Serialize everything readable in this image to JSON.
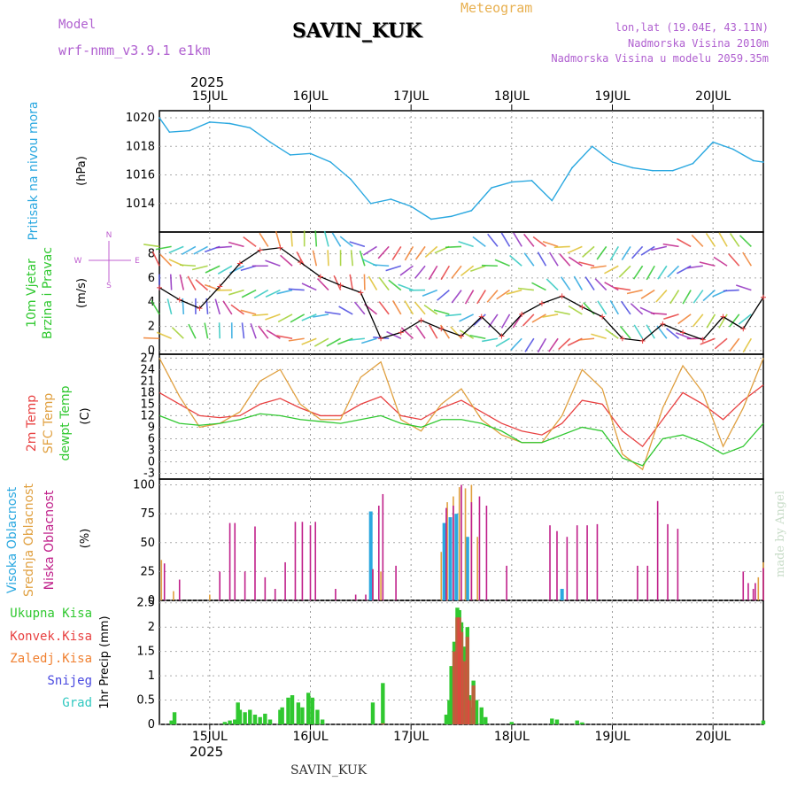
{
  "header": {
    "model_label": "Model",
    "model_name": "wrf-nmm_v3.9.1 e1km",
    "station": "SAVIN_KUK",
    "chart_title": "Meteogram",
    "location": "lon,lat (19.04E, 43.11N)",
    "elevation": "Nadmorska Visina 2010m",
    "model_elevation": "Nadmorska Visina u modelu 2059.35m"
  },
  "footer": {
    "station": "SAVIN_KUK",
    "watermark": "made by Angel"
  },
  "colors": {
    "pressure": "#2aa8e0",
    "temp2m": "#e84040",
    "sfc_temp": "#e0a040",
    "dewpt": "#30c830",
    "cloud_high": "#2aa8e0",
    "cloud_mid": "#e0a040",
    "cloud_low": "#c0208a",
    "precip_total": "#30c830",
    "precip_conv": "#e84040",
    "precip_frozen": "#f08030",
    "snow": "#4848e0",
    "hail": "#30c8c0",
    "wind_label": "#30c830",
    "compass": "#c060d0"
  },
  "chart_data": [
    {
      "type": "line",
      "panel": "pressure",
      "ylabel": [
        "Pritisak na nivou mora",
        "(hPa)"
      ],
      "ylim": [
        1012,
        1020.5
      ],
      "yticks": [
        1014,
        1016,
        1018,
        1020
      ],
      "x_days": [
        14.5,
        14.6,
        14.8,
        15.0,
        15.2,
        15.4,
        15.6,
        15.8,
        16.0,
        16.2,
        16.4,
        16.6,
        16.8,
        17.0,
        17.2,
        17.4,
        17.6,
        17.8,
        18.0,
        18.2,
        18.4,
        18.6,
        18.8,
        19.0,
        19.2,
        19.4,
        19.6,
        19.8,
        20.0,
        20.2,
        20.4,
        20.5
      ],
      "values": [
        1020.0,
        1019.0,
        1019.1,
        1019.7,
        1019.6,
        1019.3,
        1018.3,
        1017.4,
        1017.5,
        1016.9,
        1015.7,
        1014.0,
        1014.3,
        1013.8,
        1012.9,
        1013.1,
        1013.5,
        1015.1,
        1015.5,
        1015.6,
        1014.2,
        1016.5,
        1018.0,
        1016.9,
        1016.5,
        1016.3,
        1016.3,
        1016.8,
        1018.3,
        1017.8,
        1017.0,
        1016.9
      ]
    },
    {
      "type": "line",
      "panel": "wind",
      "ylabel": [
        "10m Vjetar",
        "Brzina i Pravac",
        "(m/s)"
      ],
      "compass": [
        "N",
        "S",
        "W",
        "E"
      ],
      "ylim": [
        -0.3,
        9.8
      ],
      "yticks": [
        0,
        2,
        4,
        6,
        8
      ],
      "x_days": [
        14.5,
        14.7,
        14.9,
        15.1,
        15.3,
        15.5,
        15.7,
        15.9,
        16.1,
        16.3,
        16.5,
        16.7,
        16.9,
        17.1,
        17.3,
        17.5,
        17.7,
        17.9,
        18.1,
        18.3,
        18.5,
        18.7,
        18.9,
        19.1,
        19.3,
        19.5,
        19.7,
        19.9,
        20.1,
        20.3,
        20.5
      ],
      "values": [
        5.2,
        4.2,
        3.5,
        5.3,
        7.2,
        8.3,
        8.5,
        7.3,
        6.1,
        5.4,
        4.8,
        1.0,
        1.5,
        2.5,
        1.8,
        1.2,
        2.8,
        1.2,
        3.0,
        3.9,
        4.5,
        3.6,
        2.8,
        1.0,
        0.8,
        2.2,
        1.5,
        0.9,
        2.8,
        1.8,
        4.4
      ]
    },
    {
      "type": "line",
      "panel": "temperature",
      "ylabel": [
        "2m Temp",
        "SFC Temp",
        "dewpt Temp",
        "(C)"
      ],
      "ylim": [
        -4.5,
        28
      ],
      "yticks": [
        -3,
        0,
        3,
        6,
        9,
        12,
        15,
        18,
        21,
        24,
        27
      ],
      "x_days": [
        14.5,
        14.7,
        14.9,
        15.1,
        15.3,
        15.5,
        15.7,
        15.9,
        16.1,
        16.3,
        16.5,
        16.7,
        16.9,
        17.1,
        17.3,
        17.5,
        17.7,
        17.9,
        18.1,
        18.3,
        18.5,
        18.7,
        18.9,
        19.1,
        19.3,
        19.5,
        19.7,
        19.9,
        20.1,
        20.3,
        20.5
      ],
      "series": [
        {
          "name": "2m Temp",
          "values": [
            18,
            15,
            12,
            11.5,
            12,
            15,
            16.5,
            14,
            12,
            12,
            15,
            17,
            12,
            11,
            14,
            16,
            13,
            10,
            8,
            7,
            10,
            16,
            15,
            8,
            4,
            11,
            18,
            15,
            11,
            16,
            20
          ]
        },
        {
          "name": "SFC Temp",
          "values": [
            27,
            17,
            9,
            10,
            13,
            21,
            24,
            15,
            11,
            11,
            22,
            26,
            11,
            8,
            15,
            19,
            11,
            7,
            5,
            5,
            12,
            24,
            19,
            2,
            -2,
            14,
            25,
            18,
            4,
            14,
            27
          ]
        },
        {
          "name": "dewpt Temp",
          "values": [
            12,
            10,
            9.5,
            10,
            11,
            12.5,
            12,
            11,
            10.5,
            10,
            11,
            12,
            10,
            9,
            11,
            11,
            10,
            8,
            5,
            5,
            7,
            9,
            8,
            1,
            -1,
            6,
            7,
            5,
            2,
            4,
            10
          ]
        }
      ]
    },
    {
      "type": "bar",
      "panel": "clouds",
      "ylabel": [
        "Visoka Oblacnost",
        "Srednja Oblacnost",
        "Niska Oblacnost",
        "(%)"
      ],
      "ylim": [
        0,
        105
      ],
      "yticks": [
        0,
        25,
        50,
        75,
        100
      ],
      "series": [
        {
          "name": "Visoka Oblacnost",
          "x_days": [
            16.6,
            17.33,
            17.39,
            17.45,
            17.56,
            18.5
          ],
          "values": [
            77,
            67,
            72,
            75,
            55,
            10
          ]
        },
        {
          "name": "Srednja Oblacnost",
          "x_days": [
            14.52,
            14.64,
            15.0,
            16.62,
            16.7,
            17.3,
            17.36,
            17.42,
            17.48,
            17.54,
            17.6,
            17.66,
            20.45,
            20.5
          ],
          "values": [
            35,
            8,
            5,
            27,
            25,
            42,
            85,
            90,
            98,
            97,
            100,
            55,
            20,
            33
          ]
        },
        {
          "name": "Niska Oblacnost",
          "x_days": [
            14.55,
            14.7,
            15.1,
            15.2,
            15.25,
            15.35,
            15.45,
            15.55,
            15.65,
            15.75,
            15.85,
            15.92,
            16.0,
            16.05,
            16.25,
            16.45,
            16.55,
            16.62,
            16.68,
            16.72,
            16.85,
            17.35,
            17.42,
            17.5,
            17.6,
            17.68,
            17.75,
            17.95,
            18.38,
            18.45,
            18.55,
            18.65,
            18.75,
            18.85,
            19.25,
            19.35,
            19.45,
            19.55,
            19.65,
            20.3,
            20.35,
            20.4,
            20.42,
            20.5
          ],
          "values": [
            32,
            18,
            25,
            67,
            67,
            25,
            64,
            20,
            10,
            33,
            68,
            68,
            65,
            68,
            10,
            5,
            5,
            27,
            82,
            92,
            30,
            80,
            82,
            100,
            85,
            90,
            82,
            30,
            65,
            60,
            55,
            65,
            65,
            66,
            30,
            30,
            86,
            66,
            62,
            25,
            15,
            10,
            15,
            28
          ]
        }
      ]
    },
    {
      "type": "bar",
      "panel": "precipitation",
      "ylabel": [
        "1hr Precip (mm)"
      ],
      "legend": [
        "Ukupna Kisa",
        "Konvek.Kisa",
        "Zaledj.Kisa",
        "Snijeg",
        "Grad"
      ],
      "ylim": [
        0,
        2.55
      ],
      "yticks": [
        0,
        0.5,
        1,
        1.5,
        2,
        2.5
      ],
      "series": [
        {
          "name": "Ukupna Kisa",
          "x_days": [
            14.62,
            14.65,
            15.15,
            15.2,
            15.25,
            15.28,
            15.3,
            15.35,
            15.4,
            15.45,
            15.5,
            15.55,
            15.6,
            15.7,
            15.72,
            15.78,
            15.82,
            15.88,
            15.92,
            15.98,
            16.02,
            16.07,
            16.12,
            16.62,
            16.72,
            17.35,
            17.38,
            17.4,
            17.43,
            17.46,
            17.48,
            17.5,
            17.53,
            17.56,
            17.58,
            17.6,
            17.62,
            17.65,
            17.7,
            17.74,
            18.0,
            18.4,
            18.45,
            18.65,
            18.7,
            20.5
          ],
          "values": [
            0.08,
            0.25,
            0.05,
            0.08,
            0.1,
            0.45,
            0.3,
            0.25,
            0.3,
            0.2,
            0.15,
            0.22,
            0.1,
            0.3,
            0.35,
            0.55,
            0.6,
            0.45,
            0.35,
            0.65,
            0.55,
            0.3,
            0.1,
            0.45,
            0.85,
            0.2,
            0.5,
            1.2,
            1.7,
            2.4,
            2.35,
            2.1,
            1.6,
            2.0,
            0.6,
            0.35,
            0.9,
            0.5,
            0.35,
            0.15,
            0.05,
            0.12,
            0.1,
            0.08,
            0.04,
            0.08
          ]
        },
        {
          "name": "Konvek.Kisa",
          "x_days": [
            16.72,
            17.43,
            17.46,
            17.48,
            17.5,
            17.53,
            17.56,
            17.58,
            17.62
          ],
          "values": [
            0.02,
            1.5,
            2.2,
            2.2,
            1.9,
            1.3,
            1.8,
            0.5,
            0.8
          ]
        }
      ]
    }
  ],
  "time_axis": {
    "year": "2025",
    "day_labels": [
      "15JUL",
      "16JUL",
      "17JUL",
      "18JUL",
      "19JUL",
      "20JUL"
    ],
    "label_days": [
      15,
      16,
      17,
      18,
      19,
      20
    ],
    "range_days": [
      14.5,
      20.5
    ]
  }
}
